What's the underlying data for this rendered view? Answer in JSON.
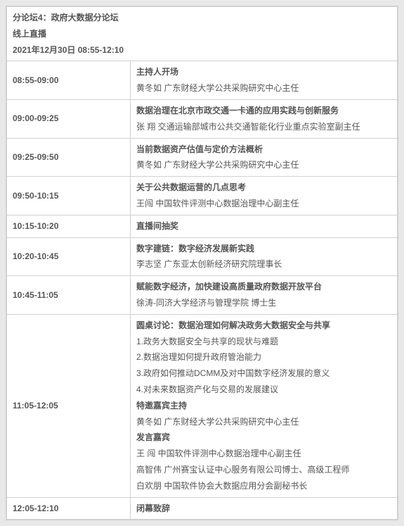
{
  "header": {
    "title": "分论坛4：政府大数据分论坛",
    "mode": "线上直播",
    "datetime": "2021年12月30日  08:55-12:10"
  },
  "rows": [
    {
      "time": "08:55-09:00",
      "lines": [
        {
          "text": "主持人开场",
          "bold": true
        },
        {
          "text": "黄冬如 广东财经大学公共采购研究中心主任",
          "bold": false
        }
      ]
    },
    {
      "time": "09:00-09:25",
      "lines": [
        {
          "text": "数据治理在北京市政交通一卡通的应用实践与创新服务",
          "bold": true
        },
        {
          "text": "张 翔 交通运输部城市公共交通智能化行业重点实验室副主任",
          "bold": false
        }
      ]
    },
    {
      "time": "09:25-09:50",
      "lines": [
        {
          "text": "当前数据资产估值与定价方法概析",
          "bold": true
        },
        {
          "text": "黄冬如 广东财经大学公共采购研究中心主任",
          "bold": false
        }
      ]
    },
    {
      "time": "09:50-10:15",
      "lines": [
        {
          "text": "关于公共数据运营的几点思考",
          "bold": true
        },
        {
          "text": "王闯 中国软件评测中心数据治理中心副主任",
          "bold": false
        }
      ]
    },
    {
      "time": "10:15-10:20",
      "lines": [
        {
          "text": "直播间抽奖",
          "bold": true
        }
      ]
    },
    {
      "time": "10:20-10:45",
      "lines": [
        {
          "text": "数字建链：数字经济发展新实践",
          "bold": true
        },
        {
          "text": "李志坚 广东亚太创新经济研究院理事长",
          "bold": false
        }
      ]
    },
    {
      "time": "10:45-11:05",
      "lines": [
        {
          "text": "赋能数字经济，加快建设高质量政府数据开放平台",
          "bold": true
        },
        {
          "text": "徐涛-同济大学经济与管理学院 博士生",
          "bold": false
        }
      ]
    },
    {
      "time": "11:05-12:05",
      "lines": [
        {
          "text": "圆桌讨论：数据治理如何解决政务大数据安全与共享",
          "bold": true
        },
        {
          "text": "1.政务大数据安全与共享的现状与难题",
          "bold": false
        },
        {
          "text": "2.数据治理如何提升政府管治能力",
          "bold": false
        },
        {
          "text": "3.政府如何推动DCMM及对中国数字经济发展的意义",
          "bold": false
        },
        {
          "text": "4.对未来数据资产化与交易的发展建议",
          "bold": false
        },
        {
          "text": "特邀嘉宾主持",
          "bold": true
        },
        {
          "text": "黄冬如 广东财经大学公共采购研究中心主任",
          "bold": false
        },
        {
          "text": "发言嘉宾",
          "bold": true
        },
        {
          "text": "王  闯 中国软件评测中心数据治理中心副主任",
          "bold": false
        },
        {
          "text": "高智伟 广州赛宝认证中心服务有限公司博士、高级工程师",
          "bold": false
        },
        {
          "text": "白欢朋 中国软件协会大数据应用分会副秘书长",
          "bold": false
        }
      ]
    },
    {
      "time": "12:05-12:10",
      "lines": [
        {
          "text": "闭幕致辞",
          "bold": true
        }
      ]
    }
  ]
}
